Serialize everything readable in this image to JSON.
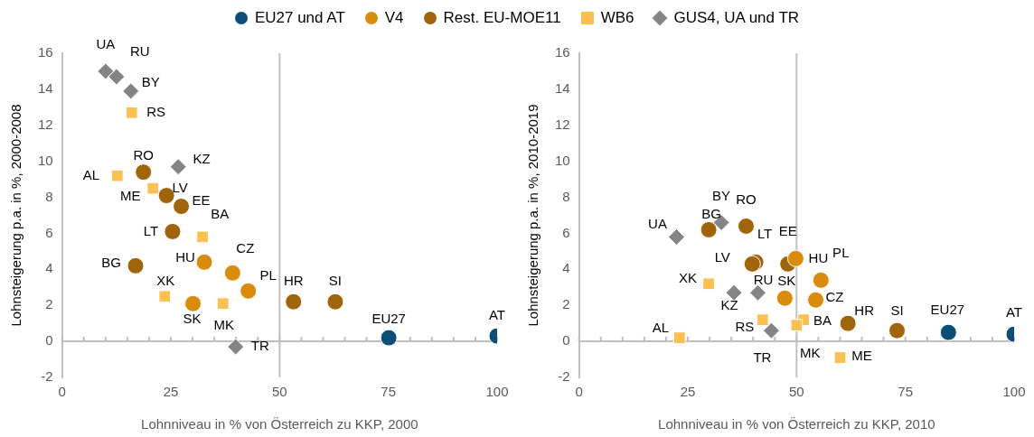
{
  "chart_data": [
    {
      "type": "scatter",
      "xlabel": "Lohnniveau in % von Österreich zu KKP, 2000",
      "ylabel": "Lohnsteigerung p.a. in %, 2000-2008",
      "xlim": [
        0,
        100
      ],
      "xticks": [
        0,
        25,
        50,
        75,
        100
      ],
      "ylim": [
        -2,
        16
      ],
      "yticks": [
        -2,
        0,
        2,
        4,
        6,
        8,
        10,
        12,
        14,
        16
      ],
      "grid": false,
      "legend": "top",
      "ref_lines": [
        {
          "axis": "x",
          "value": 50,
          "color": "#bfbfbf"
        },
        {
          "axis": "y",
          "value": 0,
          "color": "#bfbfbf"
        }
      ],
      "series": [
        {
          "name": "EU27 und AT",
          "color": "#0b4f77",
          "marker": "circle",
          "x": [
            75.1,
            100
          ],
          "values": [
            0.2,
            0.3
          ]
        },
        {
          "name": "V4",
          "color": "#d98b0b",
          "marker": "circle",
          "x": [
            32.7,
            39.2,
            42.8,
            30.1
          ],
          "values": [
            4.4,
            3.8,
            2.8,
            2.1
          ]
        },
        {
          "name": "Rest. EU-MOE11",
          "color": "#a0650a",
          "marker": "circle",
          "x": [
            18.7,
            24.0,
            27.4,
            25.4,
            16.9,
            53.2,
            62.8
          ],
          "values": [
            9.4,
            8.1,
            7.5,
            6.1,
            4.2,
            2.2,
            2.2
          ]
        },
        {
          "name": "WB6",
          "color": "#fcbf52",
          "marker": "square",
          "x": [
            16.0,
            12.7,
            20.9,
            32.3,
            23.6,
            37.0
          ],
          "values": [
            12.7,
            9.2,
            8.5,
            5.8,
            2.5,
            2.1
          ]
        },
        {
          "name": "GUS4, UA und TR",
          "color": "#848484",
          "marker": "diamond",
          "x": [
            10.0,
            12.5,
            15.8,
            26.7,
            39.9
          ],
          "values": [
            15.0,
            14.7,
            13.9,
            9.7,
            -0.3
          ]
        }
      ],
      "annotations": [
        {
          "text": "UA",
          "x": 10.0,
          "y": 15.0
        },
        {
          "text": "RU",
          "x": 12.5,
          "y": 14.7
        },
        {
          "text": "BY",
          "x": 15.8,
          "y": 13.9
        },
        {
          "text": "RS",
          "x": 16.0,
          "y": 12.7
        },
        {
          "text": "KZ",
          "x": 26.7,
          "y": 9.7
        },
        {
          "text": "AL",
          "x": 12.7,
          "y": 9.2
        },
        {
          "text": "RO",
          "x": 18.7,
          "y": 9.4
        },
        {
          "text": "ME",
          "x": 20.9,
          "y": 8.5
        },
        {
          "text": "LV",
          "x": 24.0,
          "y": 8.1
        },
        {
          "text": "EE",
          "x": 27.4,
          "y": 7.5
        },
        {
          "text": "BA",
          "x": 32.3,
          "y": 5.8
        },
        {
          "text": "LT",
          "x": 25.4,
          "y": 6.1
        },
        {
          "text": "BG",
          "x": 16.9,
          "y": 4.2
        },
        {
          "text": "HU",
          "x": 32.7,
          "y": 4.4
        },
        {
          "text": "CZ",
          "x": 39.2,
          "y": 3.8
        },
        {
          "text": "PL",
          "x": 42.8,
          "y": 2.8
        },
        {
          "text": "XK",
          "x": 23.6,
          "y": 2.5
        },
        {
          "text": "SK",
          "x": 30.1,
          "y": 2.1
        },
        {
          "text": "MK",
          "x": 37.0,
          "y": 2.1
        },
        {
          "text": "TR",
          "x": 39.9,
          "y": -0.3
        },
        {
          "text": "HR",
          "x": 53.2,
          "y": 2.2
        },
        {
          "text": "SI",
          "x": 62.8,
          "y": 2.2
        },
        {
          "text": "EU27",
          "x": 75.1,
          "y": 0.2
        },
        {
          "text": "AT",
          "x": 100,
          "y": 0.3
        }
      ]
    },
    {
      "type": "scatter",
      "xlabel": "Lohnniveau in % von Österreich zu KKP, 2010",
      "ylabel": "Lohnsteigerung p.a. in %, 2010-2019",
      "xlim": [
        0,
        100
      ],
      "xticks": [
        0,
        25,
        50,
        75,
        100
      ],
      "ylim": [
        -2,
        16
      ],
      "yticks": [
        -2,
        0,
        2,
        4,
        6,
        8,
        10,
        12,
        14,
        16
      ],
      "grid": false,
      "ref_lines": [
        {
          "axis": "x",
          "value": 50,
          "color": "#bfbfbf"
        },
        {
          "axis": "y",
          "value": 0,
          "color": "#bfbfbf"
        }
      ],
      "series": [
        {
          "color": "#0b4f77",
          "marker": "circle",
          "x": [
            84.9,
            100
          ],
          "values": [
            0.5,
            0.4
          ]
        },
        {
          "color": "#d98b0b",
          "marker": "circle",
          "x": [
            49.8,
            55.6,
            47.3,
            54.4
          ],
          "values": [
            4.6,
            3.4,
            2.4,
            2.3
          ]
        },
        {
          "color": "#a0650a",
          "marker": "circle",
          "x": [
            29.8,
            38.4,
            40.6,
            39.8,
            48.0,
            61.8,
            73.1
          ],
          "values": [
            6.2,
            6.4,
            4.4,
            4.3,
            4.3,
            1.0,
            0.6
          ]
        },
        {
          "color": "#fcbf52",
          "marker": "square",
          "x": [
            29.8,
            42.2,
            51.6,
            50.0,
            23.1,
            60.0
          ],
          "values": [
            3.2,
            1.2,
            1.2,
            0.9,
            0.2,
            -0.9
          ]
        },
        {
          "color": "#848484",
          "marker": "diamond",
          "x": [
            22.4,
            32.7,
            35.6,
            41.1,
            44.2
          ],
          "values": [
            5.8,
            6.6,
            2.7,
            2.7,
            0.6
          ]
        }
      ],
      "annotations": [
        {
          "text": "UA",
          "x": 22.4,
          "y": 5.8
        },
        {
          "text": "BG",
          "x": 29.8,
          "y": 6.2
        },
        {
          "text": "BY",
          "x": 32.7,
          "y": 6.6
        },
        {
          "text": "RO",
          "x": 38.4,
          "y": 6.4
        },
        {
          "text": "LT",
          "x": 40.6,
          "y": 4.4
        },
        {
          "text": "LV",
          "x": 39.8,
          "y": 4.3
        },
        {
          "text": "EE",
          "x": 48.0,
          "y": 4.3
        },
        {
          "text": "HU",
          "x": 49.8,
          "y": 4.6
        },
        {
          "text": "PL",
          "x": 55.6,
          "y": 3.4
        },
        {
          "text": "SK",
          "x": 47.3,
          "y": 2.4
        },
        {
          "text": "CZ",
          "x": 54.4,
          "y": 2.3
        },
        {
          "text": "XK",
          "x": 29.8,
          "y": 3.2
        },
        {
          "text": "KZ",
          "x": 35.6,
          "y": 2.7
        },
        {
          "text": "RU",
          "x": 41.1,
          "y": 2.7
        },
        {
          "text": "RS",
          "x": 42.2,
          "y": 1.2
        },
        {
          "text": "TR",
          "x": 44.2,
          "y": 0.6
        },
        {
          "text": "BA",
          "x": 51.6,
          "y": 1.2
        },
        {
          "text": "MK",
          "x": 50.0,
          "y": 0.9
        },
        {
          "text": "AL",
          "x": 23.1,
          "y": 0.2
        },
        {
          "text": "ME",
          "x": 60.0,
          "y": -0.9
        },
        {
          "text": "HR",
          "x": 61.8,
          "y": 1.0
        },
        {
          "text": "SI",
          "x": 73.1,
          "y": 0.6
        },
        {
          "text": "EU27",
          "x": 84.9,
          "y": 0.5
        },
        {
          "text": "AT",
          "x": 100,
          "y": 0.4
        }
      ]
    }
  ]
}
